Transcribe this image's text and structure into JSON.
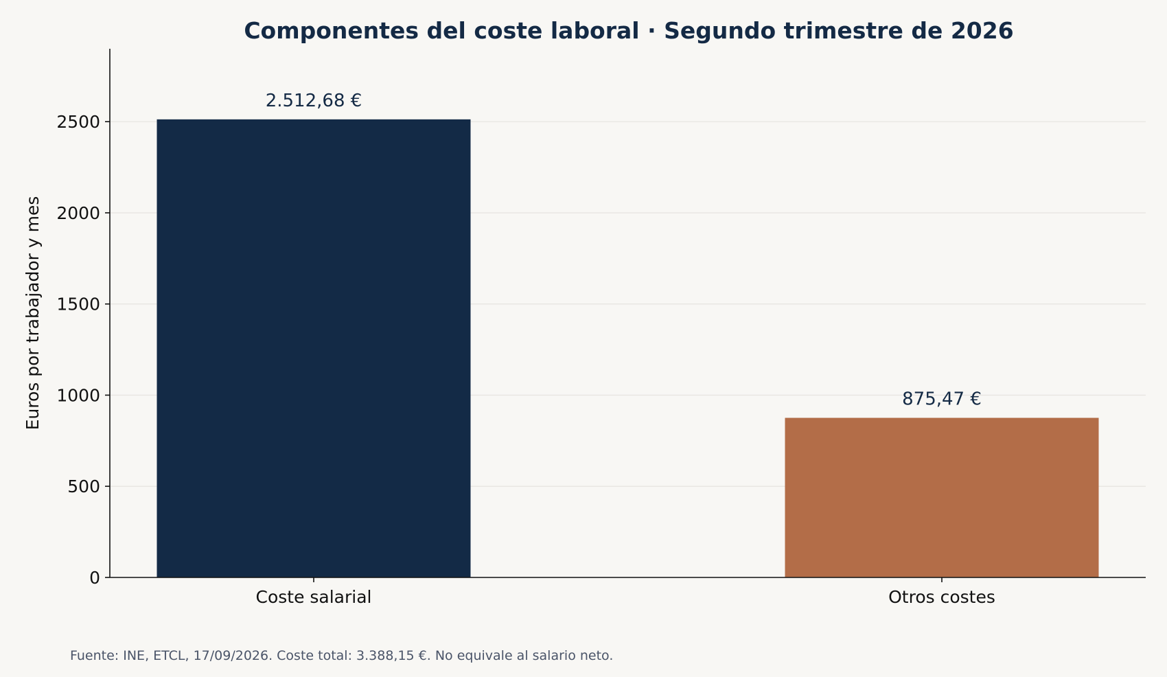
{
  "chart_data": {
    "type": "bar",
    "title": "Componentes del coste laboral · Segundo trimestre de 2026",
    "ylabel": "Euros por trabajador y mes",
    "xlabel": "",
    "categories": [
      "Coste salarial",
      "Otros costes"
    ],
    "values": [
      2512.68,
      875.47
    ],
    "data_labels": [
      "2.512,68 €",
      "875,47 €"
    ],
    "colors": [
      "#132a46",
      "#b36d48"
    ],
    "ylim": [
      0,
      2900
    ],
    "yticks": [
      0,
      500,
      1000,
      1500,
      2000,
      2500
    ],
    "ytick_labels": [
      "0",
      "500",
      "1000",
      "1500",
      "2000",
      "2500"
    ],
    "grid": true,
    "source": "Fuente: INE, ETCL, 17/09/2026. Coste total: 3.388,15 €. No equivale al salario neto."
  }
}
